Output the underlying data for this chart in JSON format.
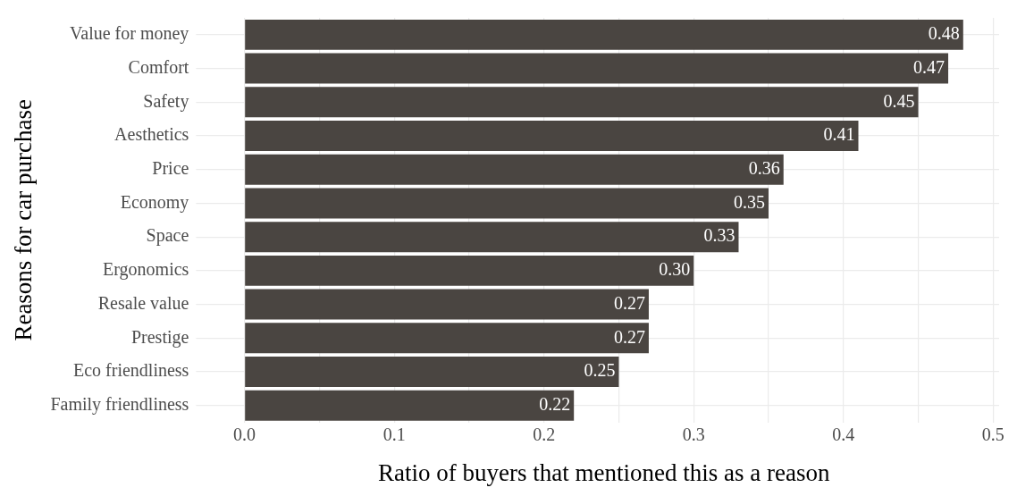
{
  "chart_data": {
    "type": "bar",
    "orientation": "horizontal",
    "xlabel": "Ratio of buyers that mentioned this as a reason",
    "ylabel": "Reasons for car purchase",
    "categories": [
      "Value for money",
      "Comfort",
      "Safety",
      "Aesthetics",
      "Price",
      "Economy",
      "Space",
      "Ergonomics",
      "Resale value",
      "Prestige",
      "Eco friendliness",
      "Family friendliness"
    ],
    "values": [
      0.48,
      0.47,
      0.45,
      0.41,
      0.36,
      0.35,
      0.33,
      0.3,
      0.27,
      0.27,
      0.25,
      0.22
    ],
    "value_labels": [
      "0.48",
      "0.47",
      "0.45",
      "0.41",
      "0.36",
      "0.35",
      "0.33",
      "0.30",
      "0.27",
      "0.27",
      "0.25",
      "0.22"
    ],
    "color": "#4a4541",
    "xlim": [
      -0.024,
      0.504
    ],
    "xticks": [
      {
        "value": 0,
        "label": "0.0"
      },
      {
        "value": 0.05,
        "label": null
      },
      0.1,
      {
        "value": 0.15,
        "label": null
      },
      0.2,
      {
        "value": 0.25,
        "label": null
      },
      0.3,
      {
        "value": 0.35,
        "label": null
      },
      0.4,
      {
        "value": 0.45,
        "label": null
      },
      0.5
    ],
    "grid": true,
    "legend": false
  }
}
